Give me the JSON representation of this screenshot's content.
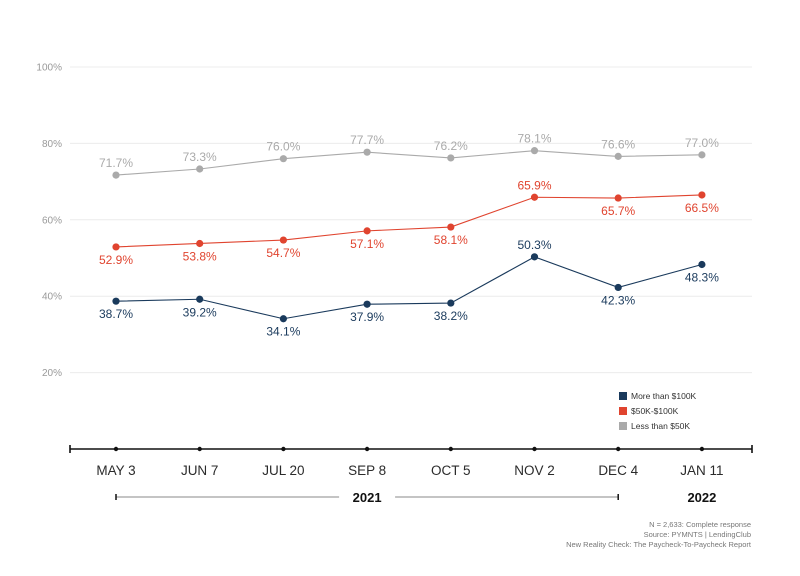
{
  "chart_data": {
    "type": "line",
    "categories": [
      "MAY 3",
      "JUN 7",
      "JUL 20",
      "SEP 8",
      "OCT 5",
      "NOV 2",
      "DEC 4",
      "JAN 11"
    ],
    "years": [
      {
        "label": "2021",
        "from": 0,
        "to": 6
      },
      {
        "label": "2022",
        "from": 7,
        "to": 7
      }
    ],
    "y_ticks": [
      {
        "value": 20,
        "label": "20%"
      },
      {
        "value": 40,
        "label": "40%"
      },
      {
        "value": 60,
        "label": "60%"
      },
      {
        "value": 80,
        "label": "80%"
      },
      {
        "value": 100,
        "label": "100%"
      }
    ],
    "ylim": [
      0,
      100
    ],
    "grid": true,
    "legend_position": "bottom-right",
    "series": [
      {
        "name": "Less than $50K",
        "color": "#aaaaaa",
        "values": [
          71.7,
          73.3,
          76.0,
          77.7,
          76.2,
          78.1,
          76.6,
          77.0
        ],
        "labels": [
          "71.7%",
          "73.3%",
          "76.0%",
          "77.7%",
          "76.2%",
          "78.1%",
          "76.6%",
          "77.0%"
        ]
      },
      {
        "name": "$50K-$100K",
        "color": "#e0442f",
        "values": [
          52.9,
          53.8,
          54.7,
          57.1,
          58.1,
          65.9,
          65.7,
          66.5
        ],
        "labels": [
          "52.9%",
          "53.8%",
          "54.7%",
          "57.1%",
          "58.1%",
          "65.9%",
          "65.7%",
          "66.5%"
        ]
      },
      {
        "name": "More than $100K",
        "color": "#1a3a5c",
        "values": [
          38.7,
          39.2,
          34.1,
          37.9,
          38.2,
          50.3,
          42.3,
          48.3
        ],
        "labels": [
          "38.7%",
          "39.2%",
          "34.1%",
          "37.9%",
          "38.2%",
          "50.3%",
          "42.3%",
          "48.3%"
        ]
      }
    ],
    "legend": [
      {
        "name": "More than $100K",
        "color": "#1a3a5c"
      },
      {
        "name": "$50K-$100K",
        "color": "#e0442f"
      },
      {
        "name": "Less than $50K",
        "color": "#aaaaaa"
      }
    ],
    "notes": [
      "N = 2,633: Complete response",
      "Source: PYMNTS  |  LendingClub",
      "New Reality Check: The Paycheck-To-Paycheck Report"
    ]
  }
}
